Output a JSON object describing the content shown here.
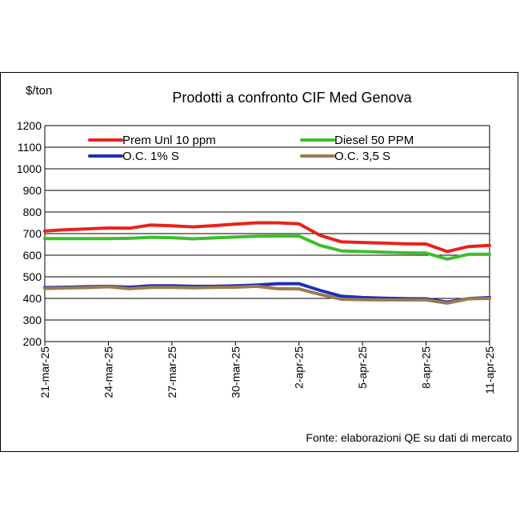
{
  "chart_data": {
    "type": "line",
    "title": "Prodotti a confronto CIF Med Genova",
    "ylabel": "$/ton",
    "xlabel": "",
    "ylim": [
      200,
      1200
    ],
    "yticks": [
      200,
      300,
      400,
      500,
      600,
      700,
      800,
      900,
      1000,
      1100,
      1200
    ],
    "grid": "horizontal",
    "legend_position": "top",
    "x": [
      "21-mar-25",
      "22-mar-25",
      "23-mar-25",
      "24-mar-25",
      "25-mar-25",
      "26-mar-25",
      "27-mar-25",
      "28-mar-25",
      "29-mar-25",
      "30-mar-25",
      "31-mar-25",
      "1-apr-25",
      "2-apr-25",
      "3-apr-25",
      "4-apr-25",
      "5-apr-25",
      "6-apr-25",
      "7-apr-25",
      "8-apr-25",
      "9-apr-25",
      "10-apr-25",
      "11-apr-25"
    ],
    "xtick_labels": [
      "21-mar-25",
      "24-mar-25",
      "27-mar-25",
      "30-mar-25",
      "2-apr-25",
      "5-apr-25",
      "8-apr-25",
      "11-apr-25"
    ],
    "series": [
      {
        "name": "Prem Unl 10 ppm",
        "color": "#e8221c",
        "values": [
          712,
          718,
          722,
          726,
          725,
          740,
          736,
          731,
          737,
          744,
          750,
          750,
          745,
          692,
          662,
          659,
          656,
          653,
          652,
          617,
          640,
          645
        ]
      },
      {
        "name": "Diesel 50 PPM",
        "color": "#3dbf2a",
        "values": [
          677,
          677,
          677,
          677,
          678,
          683,
          681,
          676,
          680,
          684,
          688,
          689,
          689,
          645,
          620,
          617,
          614,
          611,
          610,
          582,
          604,
          604
        ]
      },
      {
        "name": "O.C. 1% S",
        "color": "#1f2fb8",
        "values": [
          450,
          452,
          454,
          456,
          452,
          458,
          458,
          456,
          456,
          458,
          462,
          468,
          468,
          437,
          410,
          404,
          401,
          399,
          398,
          383,
          399,
          404
        ]
      },
      {
        "name": "O.C. 3,5 S",
        "color": "#9c7a4b",
        "values": [
          446,
          448,
          450,
          454,
          445,
          451,
          451,
          449,
          451,
          452,
          456,
          445,
          444,
          418,
          396,
          394,
          393,
          393,
          393,
          378,
          398,
          400
        ]
      }
    ],
    "source": "Fonte: elaborazioni QE su dati di mercato"
  }
}
